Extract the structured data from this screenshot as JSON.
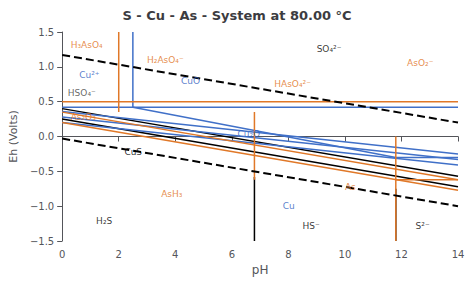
{
  "chart_data": {
    "type": "line",
    "title": "S - Cu - As - System at 80.00 °C",
    "x_label": "pH",
    "y_label": "Eh (Volts)",
    "xlim": [
      0,
      14
    ],
    "ylim": [
      -1.5,
      1.5
    ],
    "xticks": [
      0,
      2,
      4,
      6,
      8,
      10,
      12,
      14
    ],
    "yticks": [
      {
        "value": -1.5,
        "label": "−1.5"
      },
      {
        "value": -1.0,
        "label": "−1.0"
      },
      {
        "value": -0.5,
        "label": "−0.5"
      },
      {
        "value": 0.0,
        "label": "0.0"
      },
      {
        "value": 0.5,
        "label": "0.5"
      },
      {
        "value": 1.0,
        "label": "1.0"
      },
      {
        "value": 1.5,
        "label": "1.5"
      }
    ],
    "grid": false,
    "series": [
      {
        "x": [
          0,
          14
        ],
        "values": [
          1.17,
          0.2
        ],
        "color": "#000000",
        "line_style": "dashed"
      },
      {
        "x": [
          0,
          14
        ],
        "values": [
          -0.03,
          -1.0
        ],
        "color": "#000000",
        "line_style": "dashed"
      },
      {
        "x": [
          0,
          14
        ],
        "values": [
          0.4,
          -0.57
        ],
        "color": "#000000",
        "line_style": "solid"
      },
      {
        "x": [
          0,
          14
        ],
        "values": [
          0.25,
          -0.72
        ],
        "color": "#000000",
        "line_style": "solid"
      },
      {
        "x": [
          6.8,
          6.8
        ],
        "values": [
          -0.58,
          -1.5
        ],
        "color": "#000000",
        "line_style": "solid"
      },
      {
        "x": [
          11.8,
          11.8
        ],
        "values": [
          -0.75,
          -1.5
        ],
        "color": "#000000",
        "line_style": "solid"
      },
      {
        "x": [
          2.5,
          2.5
        ],
        "values": [
          1.5,
          0.42
        ],
        "color": "#4070c8",
        "line_style": "solid"
      },
      {
        "x": [
          0,
          14
        ],
        "values": [
          0.42,
          0.42
        ],
        "color": "#4070c8",
        "line_style": "solid"
      },
      {
        "x": [
          0,
          14
        ],
        "values": [
          0.36,
          -0.25
        ],
        "color": "#4070c8",
        "line_style": "solid"
      },
      {
        "x": [
          0,
          14
        ],
        "values": [
          0.28,
          -0.33
        ],
        "color": "#4070c8",
        "line_style": "solid"
      },
      {
        "x": [
          0,
          14
        ],
        "values": [
          0.2,
          -0.41
        ],
        "color": "#4070c8",
        "line_style": "solid"
      },
      {
        "x": [
          2.5,
          11.8
        ],
        "values": [
          0.42,
          -0.3
        ],
        "color": "#4070c8",
        "line_style": "solid"
      },
      {
        "x": [
          11.8,
          14
        ],
        "values": [
          -0.3,
          -0.3
        ],
        "color": "#4070c8",
        "line_style": "solid"
      },
      {
        "x": [
          2.0,
          2.0
        ],
        "values": [
          1.5,
          0.35
        ],
        "color": "#e07828",
        "line_style": "solid"
      },
      {
        "x": [
          0,
          14
        ],
        "values": [
          0.5,
          0.5
        ],
        "color": "#e07828",
        "line_style": "solid"
      },
      {
        "x": [
          0,
          14
        ],
        "values": [
          0.35,
          -0.62
        ],
        "color": "#e07828",
        "line_style": "solid"
      },
      {
        "x": [
          0,
          14
        ],
        "values": [
          0.2,
          -0.77
        ],
        "color": "#e07828",
        "line_style": "solid"
      },
      {
        "x": [
          6.8,
          6.8
        ],
        "values": [
          0.35,
          -0.62
        ],
        "color": "#e07828",
        "line_style": "solid"
      },
      {
        "x": [
          11.8,
          11.8
        ],
        "values": [
          0.0,
          -1.5
        ],
        "color": "#e07828",
        "line_style": "solid"
      },
      {
        "x": [
          11.8,
          14
        ],
        "values": [
          -0.62,
          -0.62
        ],
        "color": "#e07828",
        "line_style": "solid"
      }
    ],
    "annotations": [
      {
        "text": "H₃AsO₄",
        "x": 0.3,
        "y": 1.32,
        "color": "#e07020"
      },
      {
        "text": "H₂AsO₄⁻",
        "x": 3.0,
        "y": 1.1,
        "color": "#e07020"
      },
      {
        "text": "SO₄²⁻",
        "x": 9.0,
        "y": 1.25,
        "color": "#000000"
      },
      {
        "text": "AsO₂⁻",
        "x": 12.2,
        "y": 1.05,
        "color": "#e07020"
      },
      {
        "text": "Cu²⁺",
        "x": 0.6,
        "y": 0.88,
        "color": "#3060c0"
      },
      {
        "text": "CuO",
        "x": 4.2,
        "y": 0.8,
        "color": "#3060c0"
      },
      {
        "text": "HAsO₄²⁻",
        "x": 7.5,
        "y": 0.75,
        "color": "#e07020"
      },
      {
        "text": "HSO₄⁻",
        "x": 0.2,
        "y": 0.63,
        "color": "#404040"
      },
      {
        "text": "As₂O₃",
        "x": 0.3,
        "y": 0.28,
        "color": "#e07020"
      },
      {
        "text": "Cu₂O",
        "x": 6.2,
        "y": 0.04,
        "color": "#3060c0"
      },
      {
        "text": "CuS",
        "x": 2.2,
        "y": -0.22,
        "color": "#000000"
      },
      {
        "text": "AsH₃",
        "x": 3.5,
        "y": -0.82,
        "color": "#e07020"
      },
      {
        "text": "As",
        "x": 10.0,
        "y": -0.72,
        "color": "#e07020"
      },
      {
        "text": "Cu",
        "x": 7.8,
        "y": -1.0,
        "color": "#3060c0"
      },
      {
        "text": "H₂S",
        "x": 1.2,
        "y": -1.22,
        "color": "#000000"
      },
      {
        "text": "HS⁻",
        "x": 8.5,
        "y": -1.28,
        "color": "#000000"
      },
      {
        "text": "S²⁻",
        "x": 12.5,
        "y": -1.28,
        "color": "#000000"
      }
    ]
  }
}
